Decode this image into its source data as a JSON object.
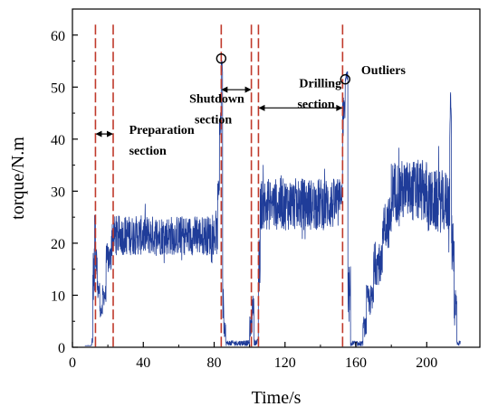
{
  "chart_data": {
    "type": "line",
    "xlabel": "Time/s",
    "ylabel": "torque/N.m",
    "xlim": [
      0,
      230
    ],
    "ylim": [
      0,
      65
    ],
    "xticks": [
      0,
      40,
      80,
      120,
      160,
      200
    ],
    "yticks": [
      0,
      10,
      20,
      30,
      40,
      50,
      60
    ],
    "grid": false,
    "series": [
      {
        "color": "#1f3c99",
        "segments": [
          {
            "x0": 7,
            "x1": 10.5,
            "base": 0,
            "noise": 0.4
          },
          {
            "x0": 10.5,
            "x1": 11.5,
            "base": 1,
            "noise": 1
          },
          {
            "x0": 11.5,
            "x1": 12.5,
            "base": 14,
            "noise": 5
          },
          {
            "x0": 12.5,
            "x1": 13,
            "base": 25,
            "noise": 1
          },
          {
            "x0": 13,
            "x1": 14,
            "base": 17,
            "noise": 3
          },
          {
            "x0": 14,
            "x1": 15.5,
            "base": 11,
            "noise": 2
          },
          {
            "x0": 15.5,
            "x1": 17,
            "base": 7,
            "noise": 1.2
          },
          {
            "x0": 17,
            "x1": 19,
            "base": 10,
            "noise": 2
          },
          {
            "x0": 19,
            "x1": 22,
            "base": 17,
            "noise": 3
          },
          {
            "x0": 22,
            "x1": 82,
            "base": 21.5,
            "noise": 3.8
          },
          {
            "x0": 82,
            "x1": 83,
            "base": 30,
            "noise": 2
          },
          {
            "x0": 83,
            "x1": 84,
            "base": 44,
            "noise": 4
          },
          {
            "x0": 84,
            "x1": 84.8,
            "base": 54,
            "noise": 1.5
          },
          {
            "x0": 84.8,
            "x1": 85.5,
            "base": 10,
            "noise": 5
          },
          {
            "x0": 85.5,
            "x1": 86.5,
            "base": 4,
            "noise": 2
          },
          {
            "x0": 86.5,
            "x1": 100,
            "base": 0.8,
            "noise": 0.5
          },
          {
            "x0": 100,
            "x1": 101.5,
            "base": 4,
            "noise": 2
          },
          {
            "x0": 101.5,
            "x1": 102.5,
            "base": 8,
            "noise": 2
          },
          {
            "x0": 102.5,
            "x1": 105,
            "base": 1,
            "noise": 0.6
          },
          {
            "x0": 105,
            "x1": 106,
            "base": 15,
            "noise": 6
          },
          {
            "x0": 106,
            "x1": 151,
            "base": 27.5,
            "noise": 5
          },
          {
            "x0": 151,
            "x1": 152.5,
            "base": 30,
            "noise": 3
          },
          {
            "x0": 152.5,
            "x1": 154,
            "base": 44,
            "noise": 5
          },
          {
            "x0": 154,
            "x1": 155.5,
            "base": 52,
            "noise": 1
          },
          {
            "x0": 155.5,
            "x1": 157,
            "base": 10,
            "noise": 6
          },
          {
            "x0": 157,
            "x1": 164,
            "base": 0.6,
            "noise": 0.6
          },
          {
            "x0": 164,
            "x1": 166,
            "base": 4,
            "noise": 2
          },
          {
            "x0": 166,
            "x1": 170,
            "base": 9,
            "noise": 3
          },
          {
            "x0": 170,
            "x1": 175,
            "base": 16,
            "noise": 4
          },
          {
            "x0": 175,
            "x1": 180,
            "base": 24,
            "noise": 5
          },
          {
            "x0": 180,
            "x1": 200,
            "base": 30,
            "noise": 6
          },
          {
            "x0": 200,
            "x1": 213,
            "base": 28,
            "noise": 6
          },
          {
            "x0": 213,
            "x1": 214,
            "base": 44,
            "noise": 5
          },
          {
            "x0": 214,
            "x1": 215.5,
            "base": 20,
            "noise": 6
          },
          {
            "x0": 215.5,
            "x1": 217,
            "base": 8,
            "noise": 4
          },
          {
            "x0": 217,
            "x1": 219,
            "base": 0.8,
            "noise": 0.5
          }
        ]
      }
    ],
    "section_lines": {
      "color": "#c0392b",
      "x": [
        13,
        23,
        84,
        101,
        105,
        152.5
      ]
    },
    "annotations": [
      {
        "text": "Preparation",
        "x": 32,
        "y": 41
      },
      {
        "text": "section",
        "x": 32,
        "y": 37
      },
      {
        "text": "Shutdown",
        "x": 66,
        "y": 47
      },
      {
        "text": "section",
        "x": 69,
        "y": 43
      },
      {
        "text": "Drilling",
        "x": 128,
        "y": 50
      },
      {
        "text": "section",
        "x": 127,
        "y": 46
      },
      {
        "text": "Outliers",
        "x": 163,
        "y": 52.5
      }
    ],
    "arrows": [
      {
        "x0": 13,
        "x1": 23,
        "y": 41
      },
      {
        "x0": 84,
        "x1": 101,
        "y": 49.5
      },
      {
        "x0": 105,
        "x1": 152.5,
        "y": 46
      }
    ],
    "outlier_markers": [
      {
        "x": 84,
        "y": 55.5
      },
      {
        "x": 154,
        "y": 51.5
      }
    ]
  }
}
